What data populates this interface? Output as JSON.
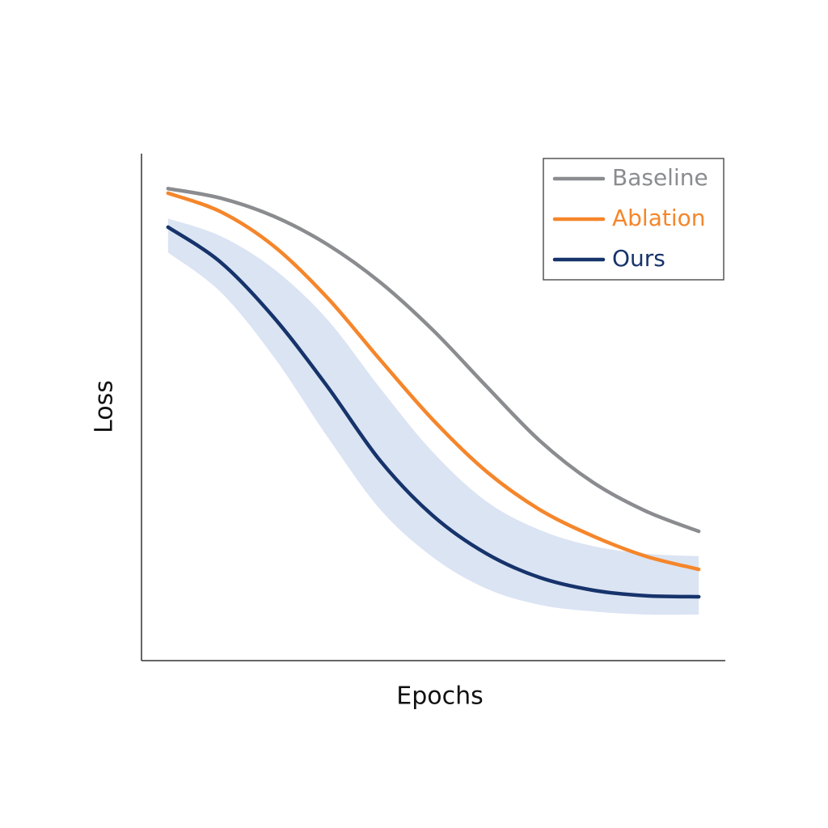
{
  "chart_data": {
    "type": "line",
    "x_label": "Epochs",
    "y_label": "Loss",
    "x": [
      0,
      1,
      2,
      3,
      4,
      5,
      6,
      7,
      8,
      9,
      10
    ],
    "xlim": [
      -0.5,
      10.5
    ],
    "ylim": [
      0,
      1
    ],
    "legend": "upper right",
    "series": [
      {
        "name": "Baseline",
        "color": "#8a8c8f",
        "values": [
          0.931,
          0.912,
          0.876,
          0.821,
          0.746,
          0.651,
          0.541,
          0.434,
          0.352,
          0.295,
          0.255
        ]
      },
      {
        "name": "Ablation",
        "color": "#f5862b",
        "values": [
          0.922,
          0.885,
          0.817,
          0.716,
          0.593,
          0.474,
          0.373,
          0.298,
          0.246,
          0.206,
          0.18
        ]
      },
      {
        "name": "Ours",
        "color": "#16336b",
        "band_color": "#dbe4f3",
        "values": [
          0.855,
          0.785,
          0.676,
          0.541,
          0.394,
          0.285,
          0.211,
          0.164,
          0.139,
          0.128,
          0.126
        ],
        "upper": [
          0.872,
          0.837,
          0.772,
          0.673,
          0.537,
          0.41,
          0.314,
          0.258,
          0.226,
          0.211,
          0.206
        ],
        "lower": [
          0.805,
          0.726,
          0.598,
          0.442,
          0.298,
          0.203,
          0.142,
          0.11,
          0.097,
          0.091,
          0.091
        ]
      }
    ]
  }
}
